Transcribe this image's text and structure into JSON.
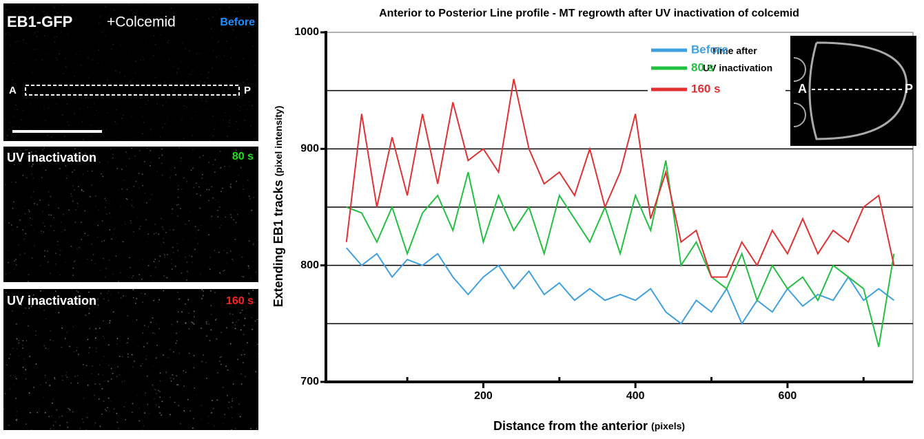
{
  "panels": [
    {
      "title": "EB1-GFP",
      "subtitle": "+Colcemid",
      "time": "Before",
      "time_color": "#1e90ff",
      "anterior": "A",
      "posterior": "P"
    },
    {
      "title": "UV inactivation",
      "time": "80 s",
      "time_color": "#22dd22"
    },
    {
      "title": "UV inactivation",
      "time": "160 s",
      "time_color": "#ff2020"
    }
  ],
  "chart_data": {
    "type": "line",
    "title": "Anterior to Posterior Line profile - MT regrowth after UV inactivation of colcemid",
    "xlabel": "Distance from the anterior",
    "xlabel_unit": "(pixels)",
    "ylabel": "Extending EB1 tracks",
    "ylabel_unit": "(pixel intensity)",
    "legend_title": [
      "Time after",
      "UV inactivation"
    ],
    "inset": {
      "anterior": "A",
      "posterior": "P"
    },
    "xlim": [
      -7,
      765
    ],
    "ylim": [
      700,
      1000
    ],
    "xticks": [
      200,
      400,
      600
    ],
    "xminorticks": [
      100,
      300,
      500,
      700
    ],
    "yticks": [
      700,
      800,
      900,
      1000
    ],
    "grid_lines": [
      750,
      800,
      850,
      900,
      950
    ],
    "x": [
      20,
      40,
      60,
      80,
      100,
      120,
      140,
      160,
      180,
      200,
      220,
      240,
      260,
      280,
      300,
      320,
      340,
      360,
      380,
      400,
      420,
      440,
      460,
      480,
      500,
      520,
      540,
      560,
      580,
      600,
      620,
      640,
      660,
      680,
      700,
      720,
      740
    ],
    "series": [
      {
        "name": "Before",
        "color": "#3fa0e0",
        "values": [
          815,
          800,
          810,
          790,
          805,
          800,
          810,
          790,
          775,
          790,
          800,
          780,
          795,
          775,
          785,
          770,
          780,
          770,
          775,
          770,
          780,
          760,
          750,
          770,
          760,
          780,
          750,
          770,
          760,
          780,
          765,
          775,
          770,
          790,
          770,
          780,
          770
        ]
      },
      {
        "name": "80 s",
        "color": "#22c040",
        "values": [
          850,
          845,
          820,
          850,
          810,
          845,
          860,
          830,
          880,
          820,
          860,
          830,
          850,
          810,
          860,
          840,
          820,
          850,
          810,
          860,
          830,
          890,
          800,
          820,
          790,
          780,
          810,
          770,
          800,
          780,
          790,
          770,
          800,
          790,
          780,
          730,
          810
        ]
      },
      {
        "name": "160 s",
        "color": "#e03030",
        "values": [
          820,
          930,
          850,
          910,
          860,
          930,
          870,
          940,
          890,
          900,
          880,
          960,
          900,
          870,
          880,
          860,
          900,
          850,
          880,
          930,
          840,
          880,
          820,
          830,
          790,
          790,
          820,
          800,
          830,
          810,
          840,
          810,
          830,
          820,
          850,
          860,
          800
        ]
      }
    ]
  }
}
